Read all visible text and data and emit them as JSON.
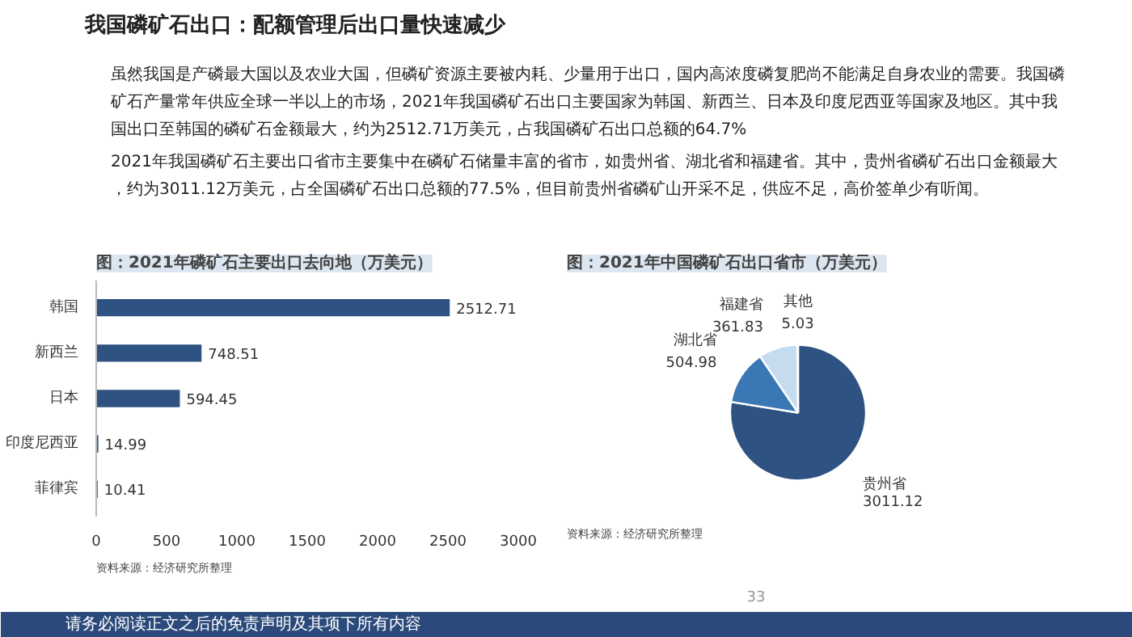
{
  "chart_data": [
    {
      "type": "other",
      "title": "我国磷矿石出口：配额管理后出口量快速减少",
      "annotations": [
        "虽然我国是产磷最大国以及农业大国，但磷矿资源主要被内耗、少量用于出口，国内高浓度磷复肥尚不能满足自身农业的需要。我国磷矿石产量常年供应全球一半以上的市场，2021年我国磷矿石出口主要国家为韩国、新西兰、日本及印度尼西亚等国家及地区。其中我国出口至韩国的磷矿石金额最大，约为2512.71万美元，占我国磷矿石出口总额的64.7%",
        "2021年我国磷矿石主要出口省市主要集中在磷矿石储量丰富的省市，如贵州省、湖北省和福建省。其中，贵州省磷矿石出口金额最大，约为3011.12万美元，占全国磷矿石出口总额的77.5%，但目前贵州省磷矿山开采不足，供应不足，高价签单少有听闻。"
      ]
    },
    {
      "type": "bar",
      "orientation": "horizontal",
      "title": "图：2021年磷矿石主要出口去向地（万美元）",
      "categories": [
        "韩国",
        "新西兰",
        "日本",
        "印度尼西亚",
        "菲律宾"
      ],
      "values": [
        2512.71,
        748.51,
        594.45,
        14.99,
        10.41
      ],
      "color": "#2e5281",
      "xlim": [
        0,
        3000
      ],
      "xticks": [
        0,
        500,
        1000,
        1500,
        2000,
        2500,
        3000
      ],
      "data_labels": true,
      "grid": false,
      "annotations": [
        "资料来源：经济研究所整理"
      ]
    },
    {
      "type": "pie",
      "title": "图：2021年中国磷矿石出口省市（万美元）",
      "categories": [
        "贵州省",
        "湖北省",
        "福建省",
        "其他"
      ],
      "values": [
        3011.12,
        504.98,
        361.83,
        5.03
      ],
      "colors": [
        "#2e5281",
        "#3a78b5",
        "#c5dcef",
        "#dae8f5"
      ],
      "data_labels": true,
      "annotations": [
        "资料来源：经济研究所整理"
      ]
    },
    {
      "type": "other",
      "annotations": [
        "33",
        "请务必阅读正文之后的免责声明及其项下所有内容"
      ]
    }
  ]
}
